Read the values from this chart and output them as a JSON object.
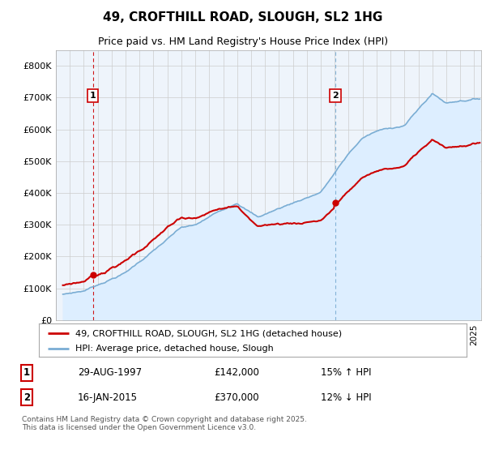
{
  "title": "49, CROFTHILL ROAD, SLOUGH, SL2 1HG",
  "subtitle": "Price paid vs. HM Land Registry's House Price Index (HPI)",
  "legend_line1": "49, CROFTHILL ROAD, SLOUGH, SL2 1HG (detached house)",
  "legend_line2": "HPI: Average price, detached house, Slough",
  "sale1_date": "29-AUG-1997",
  "sale1_price": "£142,000",
  "sale1_hpi": "15% ↑ HPI",
  "sale2_date": "16-JAN-2015",
  "sale2_price": "£370,000",
  "sale2_hpi": "12% ↓ HPI",
  "footer": "Contains HM Land Registry data © Crown copyright and database right 2025.\nThis data is licensed under the Open Government Licence v3.0.",
  "price_line_color": "#cc0000",
  "hpi_line_color": "#7aadd4",
  "hpi_fill_color": "#ddeeff",
  "sale1_vline_color": "#cc0000",
  "sale2_vline_color": "#7aadd4",
  "background_color": "#ffffff",
  "plot_bg_color": "#eef4fb",
  "ylim": [
    0,
    850000
  ],
  "yticks": [
    0,
    100000,
    200000,
    300000,
    400000,
    500000,
    600000,
    700000,
    800000
  ],
  "ytick_labels": [
    "£0",
    "£100K",
    "£200K",
    "£300K",
    "£400K",
    "£500K",
    "£600K",
    "£700K",
    "£800K"
  ],
  "sale1_x": 1997.66,
  "sale1_y": 142000,
  "sale2_x": 2015.04,
  "sale2_y": 370000,
  "xmin": 1995.5,
  "xmax": 2025.5
}
